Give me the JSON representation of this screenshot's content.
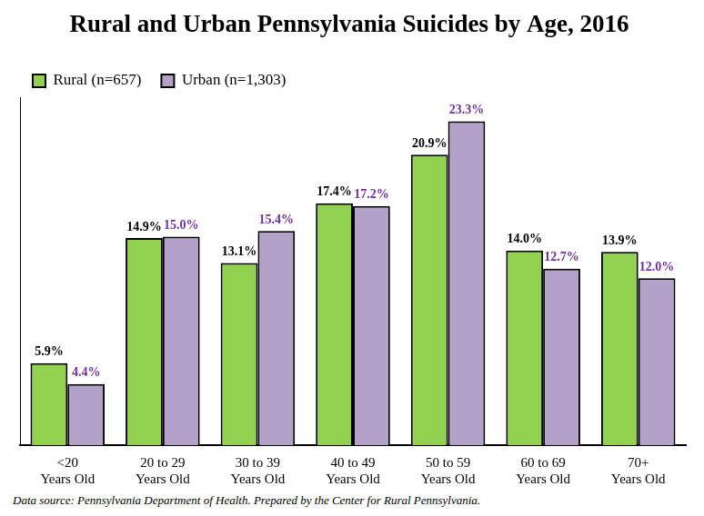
{
  "chart_data": {
    "type": "bar",
    "title": "Rural and Urban Pennsylvania Suicides by Age, 2016",
    "categories": [
      [
        "<20",
        "Years Old"
      ],
      [
        "20 to 29",
        "Years Old"
      ],
      [
        "30 to 39",
        "Years Old"
      ],
      [
        "40 to 49",
        "Years Old"
      ],
      [
        "50 to 59",
        "Years Old"
      ],
      [
        "60 to 69",
        "Years Old"
      ],
      [
        "70+",
        "Years Old"
      ]
    ],
    "series": [
      {
        "name": "Rural (n=657)",
        "color": "#92d050",
        "values": [
          5.9,
          14.9,
          13.1,
          17.4,
          20.9,
          14.0,
          13.9
        ],
        "value_labels": [
          "5.9%",
          "14.9%",
          "13.1%",
          "17.4%",
          "20.9%",
          "14.0%",
          "13.9%"
        ]
      },
      {
        "name": "Urban (n=1,303)",
        "color": "#b3a2c7",
        "values": [
          4.4,
          15.0,
          15.4,
          17.2,
          23.3,
          12.7,
          12.0
        ],
        "value_labels": [
          "4.4%",
          "15.0%",
          "15.4%",
          "17.2%",
          "23.3%",
          "12.7%",
          "12.0%"
        ]
      }
    ],
    "ylim": [
      0,
      25
    ],
    "grid": false,
    "legend": "upper left",
    "data_labels": true,
    "tick_labels": "x",
    "caption": "Data source: Pennsylvania Department of Health. Prepared by the Center for Rural Pennsylvania."
  }
}
